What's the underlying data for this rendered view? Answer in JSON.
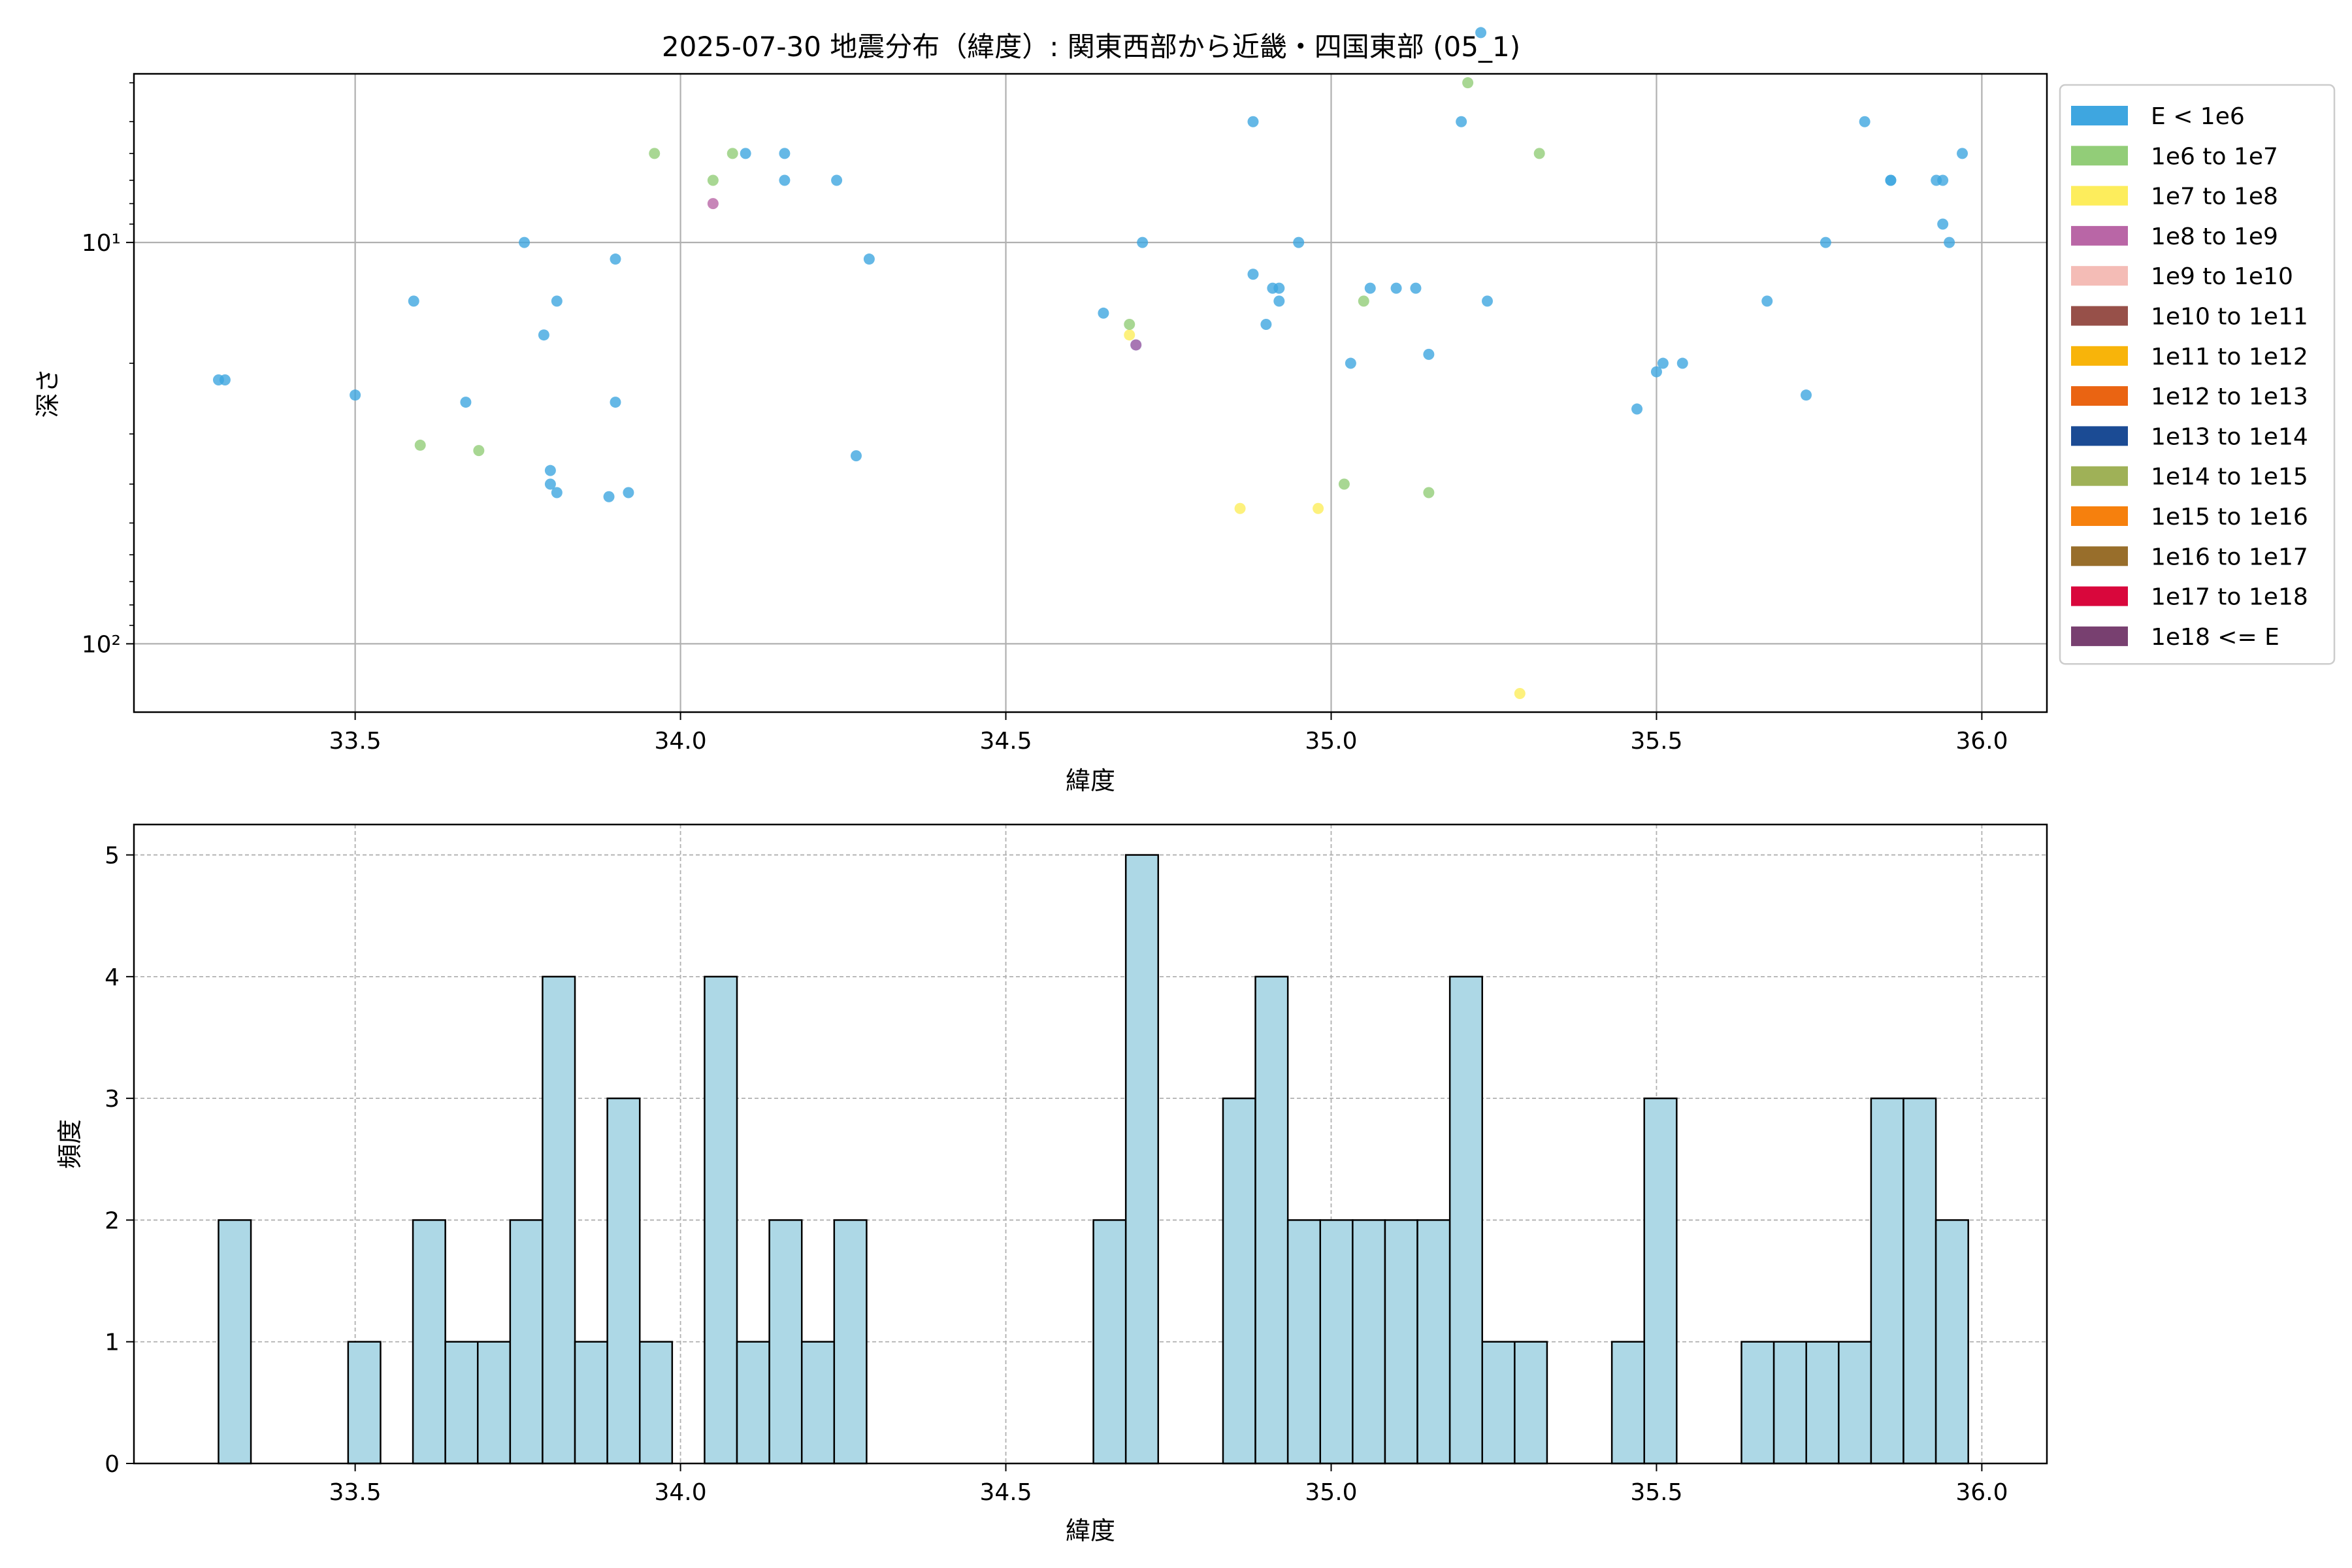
{
  "figure_title": "2025-07-30 地震分布（緯度）: 関東西部から近畿・四国東部 (05_1)",
  "colors": {
    "grid": "#b0b0b0",
    "hist_fill": "#add8e6",
    "hist_edge": "#000000",
    "axes": "#000000",
    "legend_border": "#cccccc"
  },
  "legend": [
    {
      "label": "E < 1e6",
      "color": "#3ea6e0"
    },
    {
      "label": "1e6 to 1e7",
      "color": "#92cd78"
    },
    {
      "label": "1e7 to 1e8",
      "color": "#fded5c"
    },
    {
      "label": "1e8 to 1e9",
      "color": "#b966a6"
    },
    {
      "label": "1e9 to 1e10",
      "color": "#f4bcb6"
    },
    {
      "label": "1e10 to 1e11",
      "color": "#975049"
    },
    {
      "label": "1e11 to 1e12",
      "color": "#f8b40a"
    },
    {
      "label": "1e12 to 1e13",
      "color": "#ea6412"
    },
    {
      "label": "1e13 to 1e14",
      "color": "#1b4b94"
    },
    {
      "label": "1e14 to 1e15",
      "color": "#9fb157"
    },
    {
      "label": "1e15 to 1e16",
      "color": "#f6800d"
    },
    {
      "label": "1e16 to 1e17",
      "color": "#986e2b"
    },
    {
      "label": "1e17 to 1e18",
      "color": "#d9073c"
    },
    {
      "label": "1e18 <= E",
      "color": "#784070"
    }
  ],
  "chart_data": [
    {
      "type": "scatter",
      "xlabel": "緯度",
      "ylabel": "深さ",
      "xlim": [
        33.16,
        36.1
      ],
      "ylim_log_inverted": [
        3.8,
        148
      ],
      "yscale": "log",
      "y_inverted": true,
      "grid": true,
      "legend_placement": "outside-right",
      "xticks": [
        33.5,
        34.0,
        34.5,
        35.0,
        35.5,
        36.0
      ],
      "xtick_labels": [
        "33.5",
        "34.0",
        "34.5",
        "35.0",
        "35.5",
        "36.0"
      ],
      "yticks": [
        10,
        100
      ],
      "ytick_labels": [
        "10¹",
        "10²"
      ],
      "points": [
        {
          "x": 33.29,
          "y": 22.0,
          "c": 0
        },
        {
          "x": 33.3,
          "y": 22.0,
          "c": 0
        },
        {
          "x": 33.5,
          "y": 24.0,
          "c": 0
        },
        {
          "x": 33.59,
          "y": 14.0,
          "c": 0
        },
        {
          "x": 33.6,
          "y": 32.0,
          "c": 1
        },
        {
          "x": 33.67,
          "y": 25.0,
          "c": 0
        },
        {
          "x": 33.69,
          "y": 33.0,
          "c": 1
        },
        {
          "x": 33.76,
          "y": 10.0,
          "c": 0
        },
        {
          "x": 33.79,
          "y": 17.0,
          "c": 0
        },
        {
          "x": 33.8,
          "y": 37.0,
          "c": 0
        },
        {
          "x": 33.8,
          "y": 40.0,
          "c": 0
        },
        {
          "x": 33.81,
          "y": 42.0,
          "c": 0
        },
        {
          "x": 33.81,
          "y": 14.0,
          "c": 0
        },
        {
          "x": 33.89,
          "y": 43.0,
          "c": 0
        },
        {
          "x": 33.9,
          "y": 11.0,
          "c": 0
        },
        {
          "x": 33.9,
          "y": 25.0,
          "c": 0
        },
        {
          "x": 33.92,
          "y": 42.0,
          "c": 0
        },
        {
          "x": 33.96,
          "y": 6.0,
          "c": 1
        },
        {
          "x": 34.05,
          "y": 7.0,
          "c": 1
        },
        {
          "x": 34.05,
          "y": 8.0,
          "c": 3
        },
        {
          "x": 34.08,
          "y": 6.0,
          "c": 1
        },
        {
          "x": 34.1,
          "y": 6.0,
          "c": 0
        },
        {
          "x": 34.16,
          "y": 6.0,
          "c": 0
        },
        {
          "x": 34.16,
          "y": 7.0,
          "c": 0
        },
        {
          "x": 34.24,
          "y": 7.0,
          "c": 0
        },
        {
          "x": 34.27,
          "y": 34.0,
          "c": 0
        },
        {
          "x": 34.29,
          "y": 11.0,
          "c": 0
        },
        {
          "x": 34.65,
          "y": 15.0,
          "c": 0
        },
        {
          "x": 34.69,
          "y": 17.0,
          "c": 2
        },
        {
          "x": 34.69,
          "y": 16.0,
          "c": 1
        },
        {
          "x": 34.7,
          "y": 18.0,
          "c": 0
        },
        {
          "x": 34.7,
          "y": 18.0,
          "c": 3
        },
        {
          "x": 34.71,
          "y": 10.0,
          "c": 0
        },
        {
          "x": 34.86,
          "y": 46.0,
          "c": 2
        },
        {
          "x": 34.88,
          "y": 5.0,
          "c": 0
        },
        {
          "x": 34.88,
          "y": 12.0,
          "c": 0
        },
        {
          "x": 34.9,
          "y": 16.0,
          "c": 0
        },
        {
          "x": 34.91,
          "y": 13.0,
          "c": 0
        },
        {
          "x": 34.92,
          "y": 13.0,
          "c": 0
        },
        {
          "x": 34.92,
          "y": 14.0,
          "c": 0
        },
        {
          "x": 34.95,
          "y": 10.0,
          "c": 0
        },
        {
          "x": 34.98,
          "y": 46.0,
          "c": 2
        },
        {
          "x": 35.02,
          "y": 40.0,
          "c": 1
        },
        {
          "x": 35.03,
          "y": 20.0,
          "c": 0
        },
        {
          "x": 35.05,
          "y": 14.0,
          "c": 1
        },
        {
          "x": 35.06,
          "y": 13.0,
          "c": 0
        },
        {
          "x": 35.1,
          "y": 13.0,
          "c": 0
        },
        {
          "x": 35.13,
          "y": 13.0,
          "c": 0
        },
        {
          "x": 35.15,
          "y": 19.0,
          "c": 0
        },
        {
          "x": 35.15,
          "y": 42.0,
          "c": 1
        },
        {
          "x": 35.2,
          "y": 5.0,
          "c": 0
        },
        {
          "x": 35.21,
          "y": 4.0,
          "c": 1
        },
        {
          "x": 35.23,
          "y": 3.0,
          "c": 0
        },
        {
          "x": 35.24,
          "y": 14.0,
          "c": 0
        },
        {
          "x": 35.29,
          "y": 133.0,
          "c": 2
        },
        {
          "x": 35.32,
          "y": 6.0,
          "c": 1
        },
        {
          "x": 35.47,
          "y": 26.0,
          "c": 0
        },
        {
          "x": 35.5,
          "y": 21.0,
          "c": 0
        },
        {
          "x": 35.51,
          "y": 20.0,
          "c": 0
        },
        {
          "x": 35.54,
          "y": 20.0,
          "c": 0
        },
        {
          "x": 35.67,
          "y": 14.0,
          "c": 0
        },
        {
          "x": 35.73,
          "y": 24.0,
          "c": 0
        },
        {
          "x": 35.76,
          "y": 10.0,
          "c": 0
        },
        {
          "x": 35.82,
          "y": 5.0,
          "c": 0
        },
        {
          "x": 35.86,
          "y": 7.0,
          "c": 0
        },
        {
          "x": 35.86,
          "y": 7.0,
          "c": 0
        },
        {
          "x": 35.93,
          "y": 7.0,
          "c": 0
        },
        {
          "x": 35.94,
          "y": 7.0,
          "c": 0
        },
        {
          "x": 35.94,
          "y": 9.0,
          "c": 0
        },
        {
          "x": 35.95,
          "y": 10.0,
          "c": 0
        },
        {
          "x": 35.97,
          "y": 6.0,
          "c": 0
        }
      ]
    },
    {
      "type": "bar",
      "xlabel": "緯度",
      "ylabel": "頻度",
      "xlim": [
        33.16,
        36.1
      ],
      "ylim": [
        0,
        5.25
      ],
      "grid": true,
      "xticks": [
        33.5,
        34.0,
        34.5,
        35.0,
        35.5,
        36.0
      ],
      "xtick_labels": [
        "33.5",
        "34.0",
        "34.5",
        "35.0",
        "35.5",
        "36.0"
      ],
      "yticks": [
        0,
        1,
        2,
        3,
        4,
        5
      ],
      "ytick_labels": [
        "0",
        "1",
        "2",
        "3",
        "4",
        "5"
      ],
      "bin_start": 33.29,
      "bin_width": 0.0498,
      "counts": [
        2,
        0,
        0,
        0,
        1,
        0,
        2,
        1,
        1,
        2,
        4,
        1,
        3,
        1,
        0,
        4,
        1,
        2,
        1,
        2,
        0,
        0,
        0,
        0,
        0,
        0,
        0,
        2,
        5,
        0,
        0,
        3,
        4,
        2,
        2,
        2,
        2,
        2,
        4,
        1,
        1,
        0,
        0,
        1,
        3,
        0,
        0,
        1,
        1,
        1,
        1,
        3,
        3,
        2
      ]
    }
  ]
}
